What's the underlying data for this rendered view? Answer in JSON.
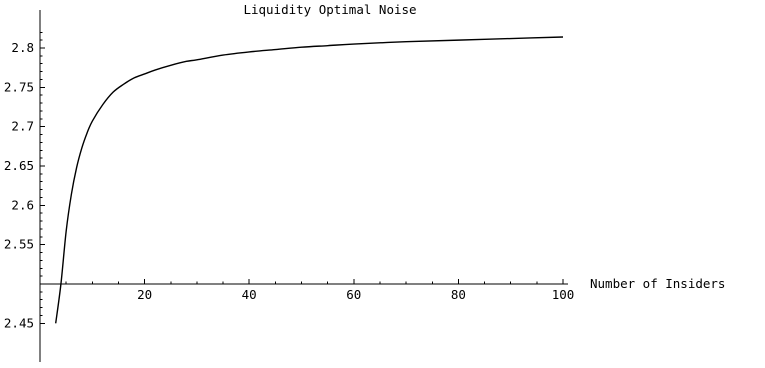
{
  "chart_data": {
    "type": "line",
    "title": "Liquidity Optimal Noise",
    "xlabel": "Number of Insiders",
    "ylabel": "",
    "xlim": [
      0,
      100
    ],
    "ylim": [
      2.45,
      2.82
    ],
    "axis_origin": {
      "x": 0,
      "y": 2.5
    },
    "grid": false,
    "x_ticks": [
      20,
      40,
      60,
      80,
      100
    ],
    "x_tick_labels": [
      "20",
      "40",
      "60",
      "80",
      "100"
    ],
    "y_ticks": [
      2.45,
      2.55,
      2.6,
      2.65,
      2.7,
      2.75,
      2.8
    ],
    "y_tick_labels": [
      "2.45",
      "2.55",
      "2.6",
      "2.65",
      "2.7",
      "2.75",
      "2.8"
    ],
    "series": [
      {
        "x": [
          3,
          4,
          5,
          6,
          7,
          8,
          9,
          10,
          12,
          14,
          16,
          18,
          20,
          22,
          25,
          28,
          30,
          35,
          40,
          45,
          50,
          55,
          60,
          70,
          80,
          90,
          100
        ],
        "y": [
          2.45,
          2.5,
          2.567,
          2.614,
          2.648,
          2.673,
          2.692,
          2.707,
          2.728,
          2.744,
          2.754,
          2.762,
          2.767,
          2.772,
          2.778,
          2.783,
          2.785,
          2.791,
          2.795,
          2.798,
          2.801,
          2.803,
          2.805,
          2.808,
          2.81,
          2.812,
          2.814
        ]
      }
    ]
  }
}
